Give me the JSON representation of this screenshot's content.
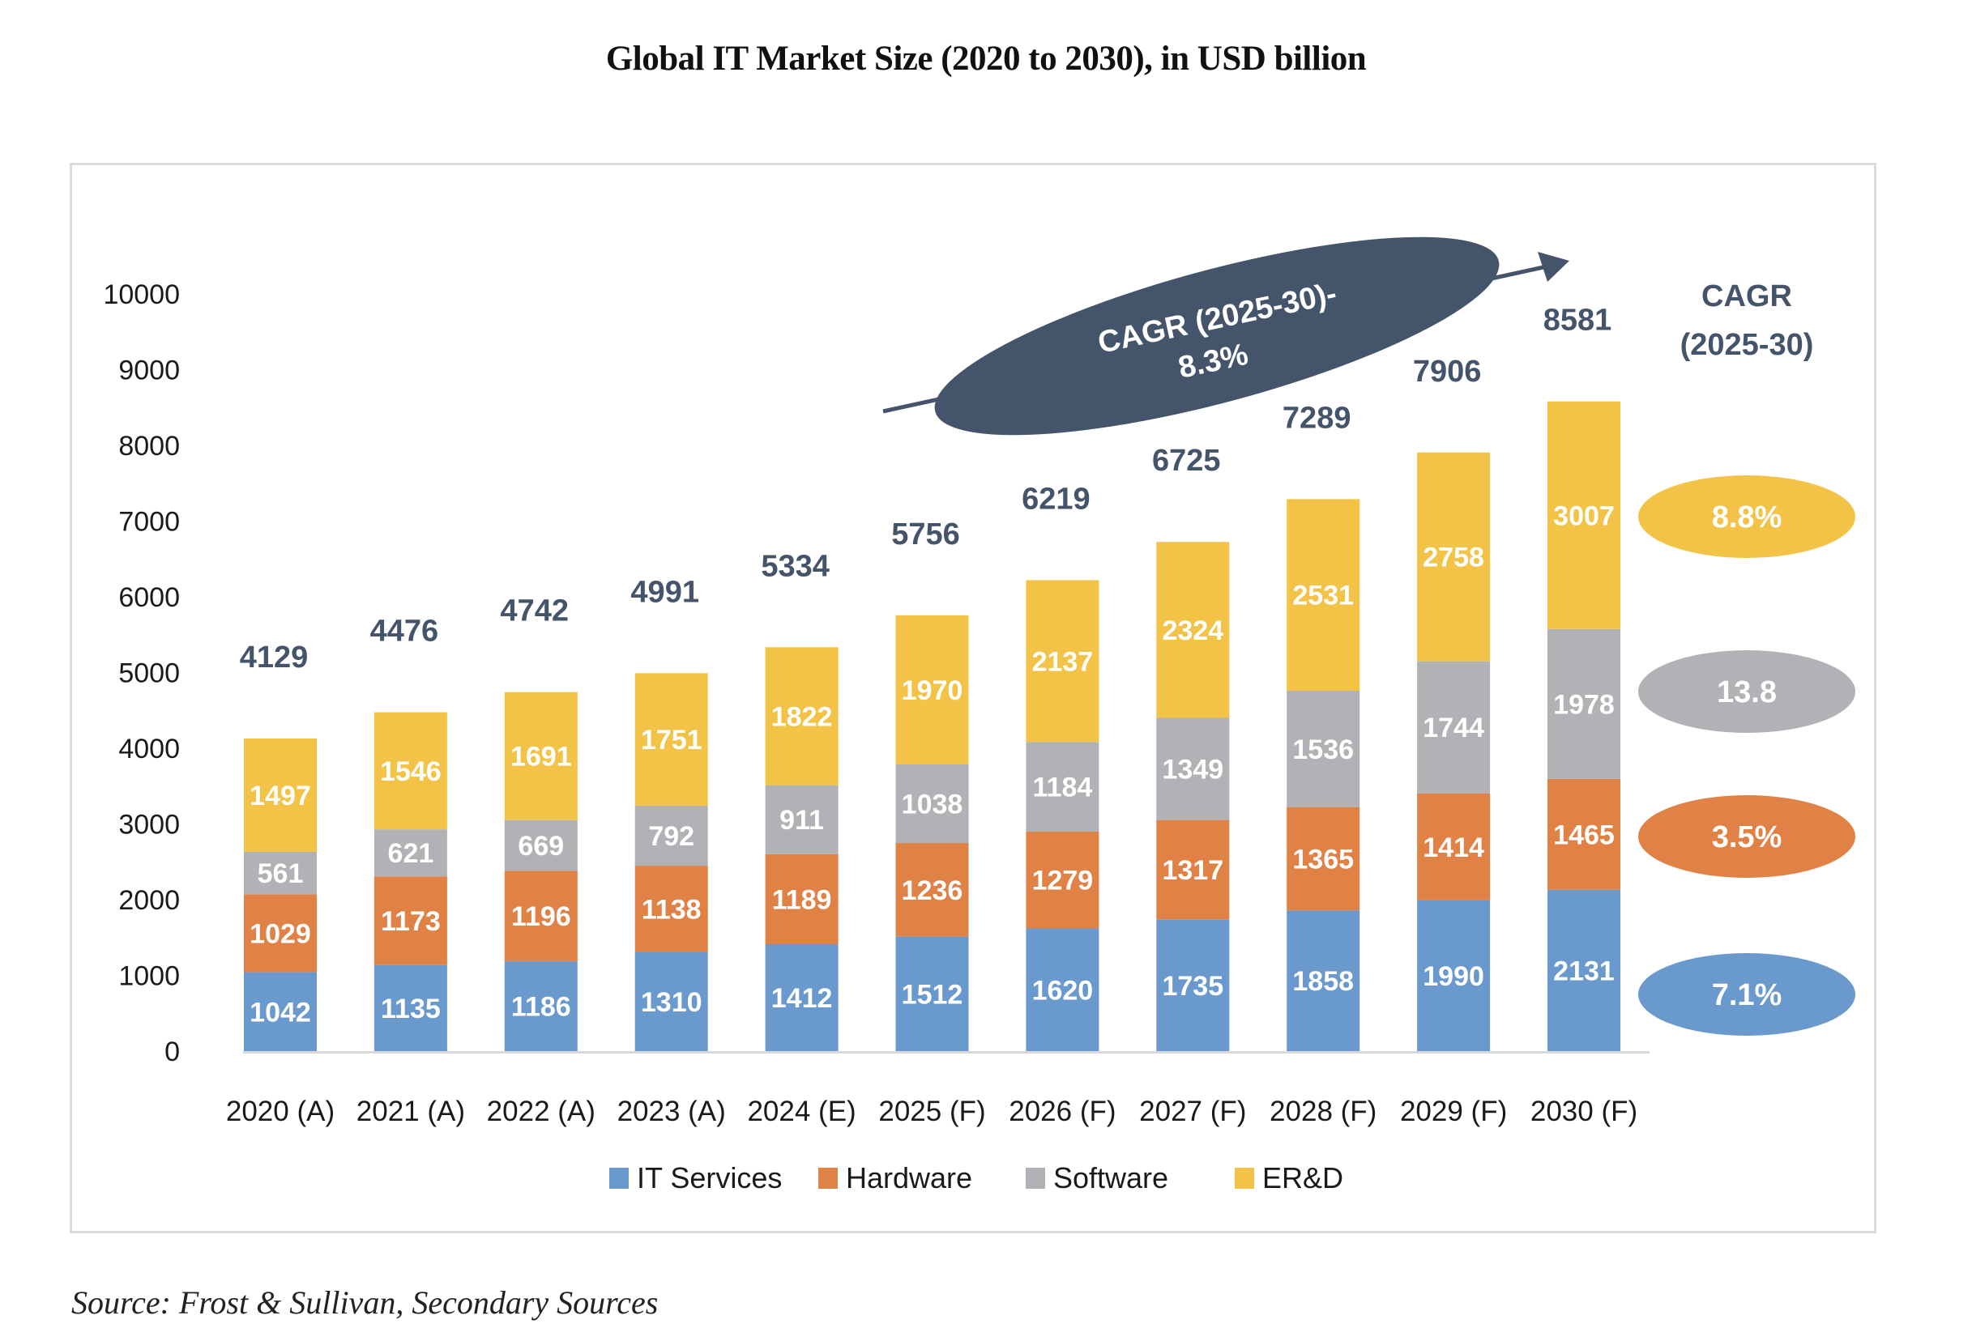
{
  "page": {
    "title": "Global IT Market Size (2020 to 2030), in USD billion",
    "source": "Source: Frost & Sullivan, Secondary Sources"
  },
  "chart_data": {
    "type": "bar",
    "stacked": true,
    "title": "Global IT Market Size (2020 to 2030), in USD billion",
    "xlabel": "",
    "ylabel": "",
    "ylim": [
      0,
      10000
    ],
    "yticks": [
      0,
      1000,
      2000,
      3000,
      4000,
      5000,
      6000,
      7000,
      8000,
      9000,
      10000
    ],
    "grid": false,
    "legend_position": "bottom",
    "categories": [
      "2020 (A)",
      "2021 (A)",
      "2022 (A)",
      "2023 (A)",
      "2024 (E)",
      "2025 (F)",
      "2026 (F)",
      "2027 (F)",
      "2028 (F)",
      "2029 (F)",
      "2030 (F)"
    ],
    "series": [
      {
        "name": "IT Services",
        "color": "#6a99cd",
        "values": [
          1042,
          1135,
          1186,
          1310,
          1412,
          1512,
          1620,
          1735,
          1858,
          1990,
          2131
        ]
      },
      {
        "name": "Hardware",
        "color": "#e08245",
        "values": [
          1029,
          1173,
          1196,
          1138,
          1189,
          1236,
          1279,
          1317,
          1365,
          1414,
          1465
        ]
      },
      {
        "name": "Software",
        "color": "#b1b2b5",
        "values": [
          561,
          621,
          669,
          792,
          911,
          1038,
          1184,
          1349,
          1536,
          1744,
          1978
        ]
      },
      {
        "name": "ER&D",
        "color": "#f2c347",
        "values": [
          1497,
          1546,
          1691,
          1751,
          1822,
          1970,
          2137,
          2324,
          2531,
          2758,
          3007
        ]
      }
    ],
    "totals": [
      4129,
      4476,
      4742,
      4991,
      5334,
      5756,
      6219,
      6725,
      7289,
      7906,
      8581
    ],
    "annotations": {
      "overall_cagr": {
        "line1": "CAGR (2025-30)-",
        "line2": "8.3%",
        "color": "#44546a"
      },
      "segment_cagr_header": [
        "CAGR",
        "(2025-30)"
      ],
      "segment_cagr": [
        {
          "series": "ER&D",
          "label": "8.8%",
          "color": "#f2c347"
        },
        {
          "series": "Software",
          "label": "13.8",
          "color": "#b1b2b5"
        },
        {
          "series": "Hardware",
          "label": "3.5%",
          "color": "#e08245"
        },
        {
          "series": "IT Services",
          "label": "7.1%",
          "color": "#6a99cd"
        }
      ]
    }
  }
}
